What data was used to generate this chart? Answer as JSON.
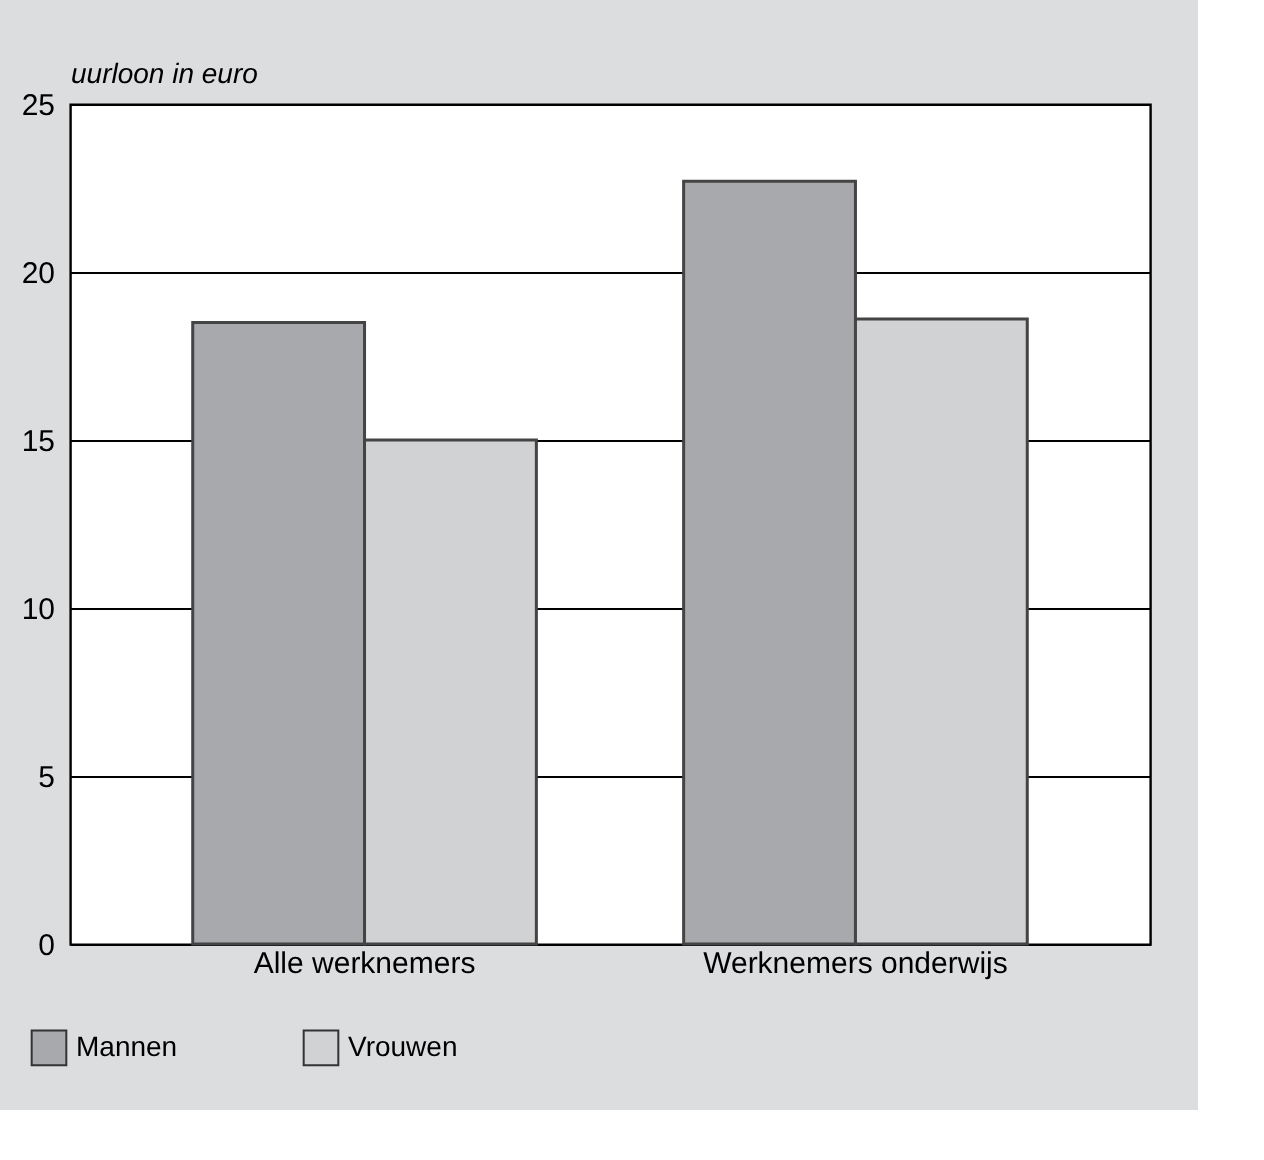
{
  "chart_data": {
    "type": "bar",
    "ylabel": "uurloon in euro",
    "categories": [
      "Alle werknemers",
      "Werknemers onderwijs"
    ],
    "series": [
      {
        "name": "Mannen",
        "color": "#a8a9ad",
        "values": [
          18.5,
          22.7
        ]
      },
      {
        "name": "Vrouwen",
        "color": "#d1d2d4",
        "values": [
          15.0,
          18.6
        ]
      }
    ],
    "ylim": [
      0,
      25
    ],
    "yticks": [
      0,
      5,
      10,
      15,
      20,
      25
    ],
    "grid": "y",
    "legend": "bottom left"
  }
}
